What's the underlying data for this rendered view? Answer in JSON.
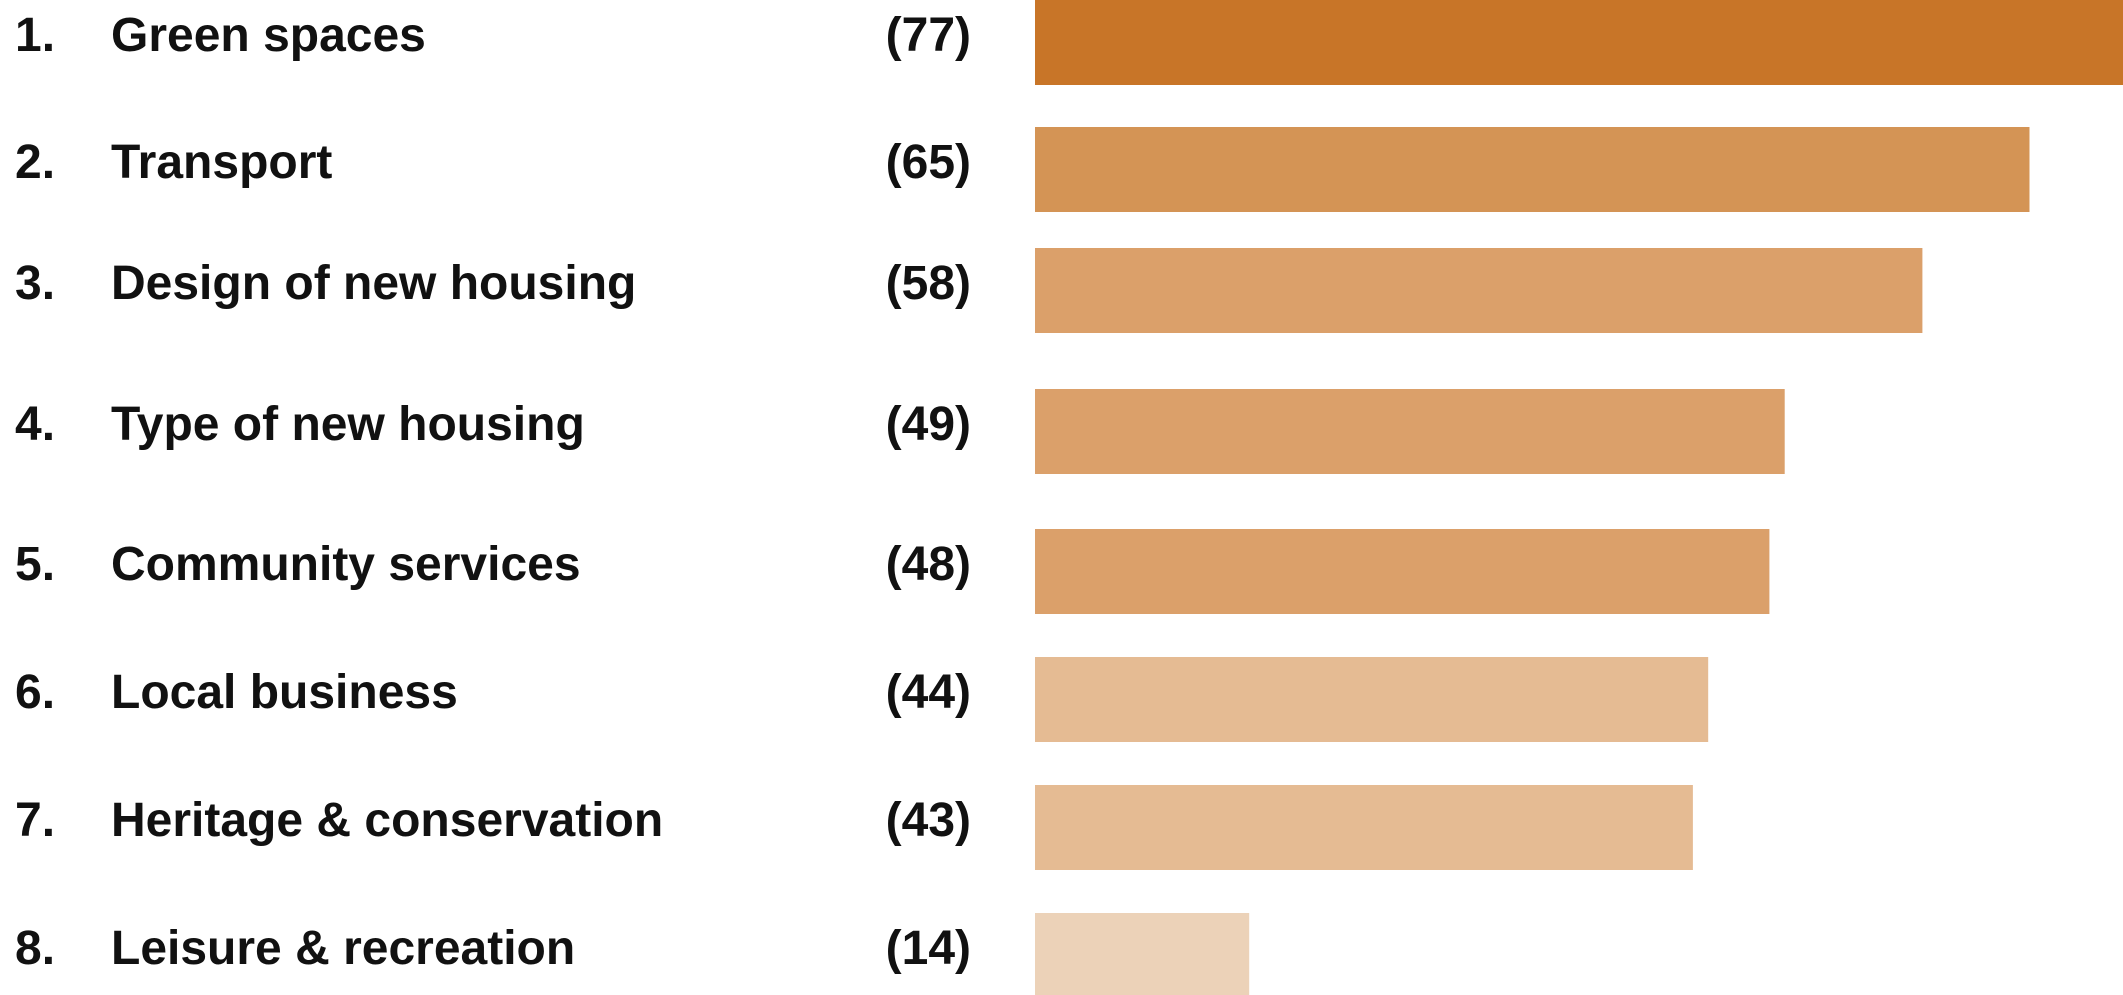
{
  "chart_data": {
    "type": "bar",
    "ranks": [
      "1.",
      "2.",
      "3.",
      "4.",
      "5.",
      "6.",
      "7.",
      "8."
    ],
    "categories": [
      "Green spaces",
      "Transport",
      "Design of new housing",
      "Type of new housing",
      "Community services",
      "Local business",
      "Heritage & conservation",
      "Leisure & recreation"
    ],
    "values": [
      77,
      65,
      58,
      49,
      48,
      44,
      43,
      14
    ],
    "value_labels": [
      "(77)",
      "(65)",
      "(58)",
      "(49)",
      "(48)",
      "(44)",
      "(43)",
      "(14)"
    ],
    "colors": [
      "#c87528",
      "#d49455",
      "#dba06a",
      "#dba06a",
      "#dba06a",
      "#e5bb93",
      "#e5bb93",
      "#ecd2b8"
    ]
  }
}
